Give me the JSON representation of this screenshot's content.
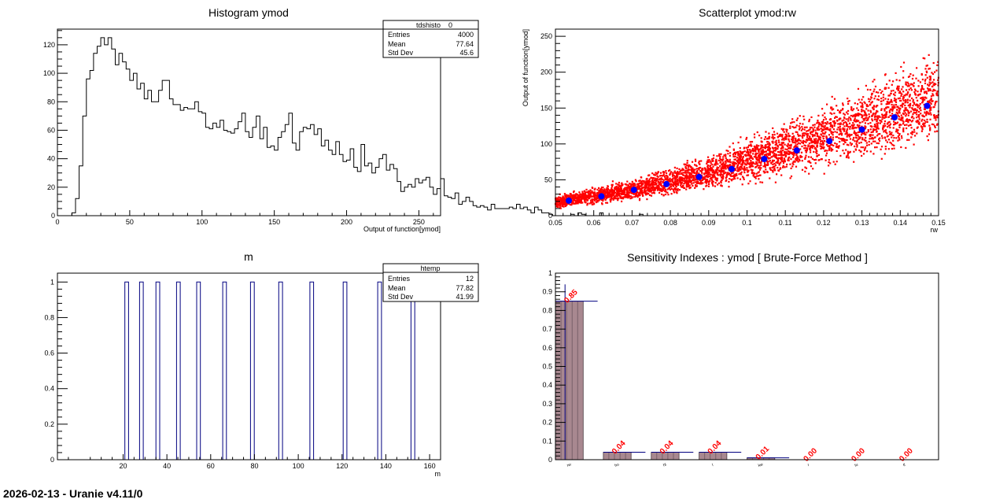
{
  "footer": "2026-02-13 - Uranie v4.11/0",
  "chart_data": [
    {
      "type": "bar",
      "title": "Histogram ymod",
      "xlabel": "Output of function[ymod]",
      "ylabel": "",
      "xlim": [
        0,
        265
      ],
      "ylim": [
        0,
        131
      ],
      "xticks": [
        0,
        50,
        100,
        150,
        200,
        250
      ],
      "yticks": [
        0,
        20,
        40,
        60,
        80,
        100,
        120
      ],
      "bin_start": 10,
      "bin_width": 2.5,
      "values": [
        2,
        12,
        35,
        70,
        96,
        102,
        114,
        119,
        125,
        120,
        125,
        117,
        106,
        114,
        108,
        103,
        95,
        100,
        89,
        93,
        82,
        88,
        80,
        80,
        88,
        95,
        95,
        82,
        78,
        78,
        74,
        76,
        75,
        75,
        80,
        73,
        72,
        62,
        61,
        65,
        62,
        67,
        60,
        59,
        58,
        61,
        66,
        72,
        59,
        55,
        62,
        70,
        54,
        62,
        48,
        49,
        46,
        55,
        59,
        64,
        72,
        51,
        46,
        59,
        62,
        61,
        64,
        57,
        61,
        49,
        53,
        46,
        43,
        52,
        43,
        38,
        39,
        47,
        34,
        31,
        50,
        35,
        37,
        30,
        34,
        40,
        43,
        32,
        36,
        33,
        24,
        17,
        20,
        22,
        20,
        26,
        23,
        25,
        27,
        20,
        15,
        19,
        26,
        14,
        13,
        12,
        16,
        8,
        10,
        13,
        10,
        7,
        6,
        7,
        6,
        4,
        8,
        5,
        5,
        5,
        5,
        6,
        5,
        8,
        5,
        6,
        4,
        2,
        6,
        4,
        2,
        2,
        1,
        0,
        0,
        0,
        0,
        0,
        1,
        0,
        2,
        1,
        0,
        0,
        0,
        0,
        2,
        0,
        0,
        0,
        0,
        0,
        0,
        0,
        0,
        0,
        0,
        1,
        0
      ],
      "stats": {
        "name": "__tdshisto__0",
        "rows": [
          [
            "Entries",
            "4000"
          ],
          [
            "Mean",
            "77.64"
          ],
          [
            "Std Dev",
            "45.6"
          ]
        ]
      }
    },
    {
      "type": "scatter",
      "title": "Scatterplot ymod:rw",
      "xlabel": "rw",
      "ylabel": "Output of function[ymod]",
      "xlim": [
        0.05,
        0.15
      ],
      "ylim": [
        0,
        260
      ],
      "xticks": [
        "0.05",
        "0.06",
        "0.07",
        "0.08",
        "0.09",
        "0.1",
        "0.11",
        "0.12",
        "0.13",
        "0.14",
        "0.15"
      ],
      "yticks": [
        0,
        50,
        100,
        150,
        200,
        250
      ],
      "series": [
        {
          "color": "#ff0000",
          "points": "dense cloud",
          "n_points": 4000,
          "band_lower": [
            [
              0.05,
              8
            ],
            [
              0.07,
              16
            ],
            [
              0.09,
              30
            ],
            [
              0.11,
              45
            ],
            [
              0.13,
              65
            ],
            [
              0.15,
              85
            ]
          ],
          "band_upper": [
            [
              0.05,
              30
            ],
            [
              0.07,
              55
            ],
            [
              0.09,
              90
            ],
            [
              0.11,
              140
            ],
            [
              0.13,
              195
            ],
            [
              0.15,
              245
            ]
          ]
        },
        {
          "color": "#0000ff",
          "x": [
            0.0535,
            0.062,
            0.0705,
            0.079,
            0.0875,
            0.096,
            0.1045,
            0.113,
            0.1215,
            0.13,
            0.1385,
            0.147
          ],
          "y": [
            21,
            27,
            36,
            44,
            54,
            65,
            79,
            91,
            104,
            120,
            137,
            153
          ]
        }
      ]
    },
    {
      "type": "bar",
      "title": "m",
      "xlabel": "m",
      "ylabel": "",
      "xlim": [
        -10,
        165
      ],
      "ylim": [
        0,
        1.05
      ],
      "xticks": [
        20,
        40,
        60,
        80,
        100,
        120,
        140,
        160
      ],
      "yticks": [
        "0",
        "0.2",
        "0.4",
        "0.6",
        "0.8",
        "1"
      ],
      "bars": [
        [
          20.8,
          22.5
        ],
        [
          27.5,
          29.2
        ],
        [
          35,
          36.7
        ],
        [
          44.4,
          46.1
        ],
        [
          53.6,
          55.3
        ],
        [
          65.5,
          67.2
        ],
        [
          78.2,
          79.9
        ],
        [
          91.1,
          92.8
        ],
        [
          105.3,
          107
        ],
        [
          120.5,
          122.2
        ],
        [
          136.3,
          138
        ],
        [
          151.5,
          153.2
        ]
      ],
      "values": [
        1,
        1,
        1,
        1,
        1,
        1,
        1,
        1,
        1,
        1,
        1,
        1
      ],
      "stats": {
        "name": "htemp",
        "rows": [
          [
            "Entries",
            "12"
          ],
          [
            "Mean",
            "77.82"
          ],
          [
            "Std Dev",
            "41.99"
          ]
        ]
      }
    },
    {
      "type": "bar",
      "title": "Sensitivity Indexes : ymod  [ Brute-Force Method ]",
      "xlabel": "",
      "ylabel": "",
      "ylim": [
        0,
        1
      ],
      "yticks": [
        "0",
        "0.1",
        "0.2",
        "0.3",
        "0.4",
        "0.5",
        "0.6",
        "0.7",
        "0.8",
        "0.9",
        "1"
      ],
      "categories": [
        "rw",
        "hu",
        "hl",
        "l",
        "kw",
        "r",
        "tu",
        "tl"
      ],
      "values": [
        0.85,
        0.04,
        0.04,
        0.04,
        0.01,
        0.0,
        0.0,
        0.0
      ],
      "labels": [
        "0.85",
        "0.04",
        "0.04",
        "0.04",
        "0.01",
        "0.00",
        "0.00",
        "0.00"
      ],
      "colors": {
        "bars": "#a88890",
        "labels": "#ff0000",
        "errors": "#000080"
      }
    }
  ]
}
